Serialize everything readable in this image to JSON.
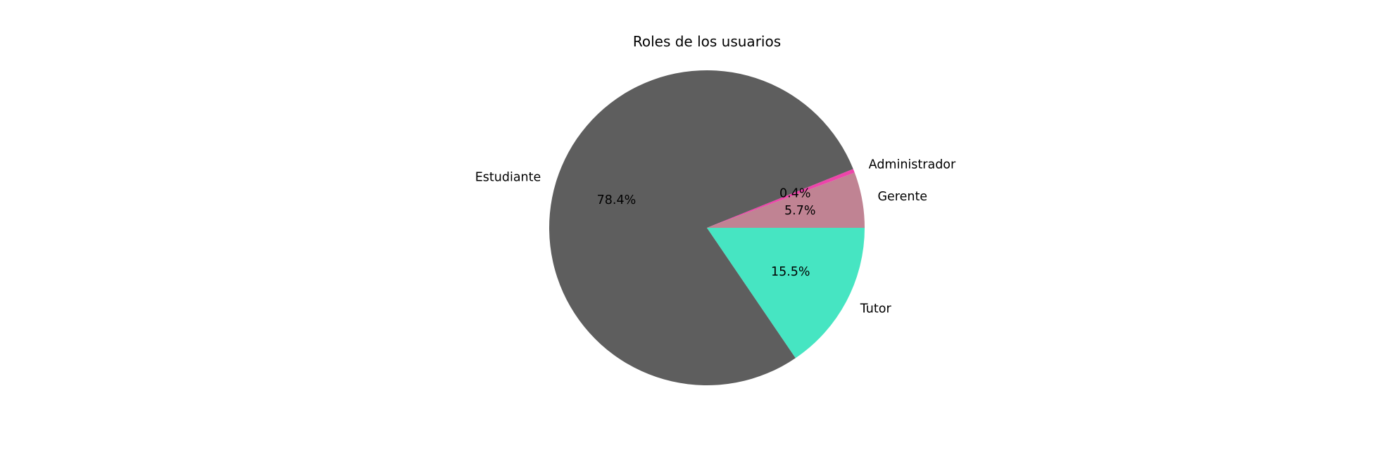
{
  "chart_data": {
    "type": "pie",
    "title": "Roles de los usuarios",
    "start_angle_deg": 0,
    "direction": "counterclockwise",
    "slices": [
      {
        "label": "Gerente",
        "value": 5.7,
        "pct_label": "5.7%",
        "color": "#c08393"
      },
      {
        "label": "Administrador",
        "value": 0.4,
        "pct_label": "0.4%",
        "color": "#ed45aa"
      },
      {
        "label": "Estudiante",
        "value": 78.4,
        "pct_label": "78.4%",
        "color": "#5e5e5e"
      },
      {
        "label": "Tutor",
        "value": 15.5,
        "pct_label": "15.5%",
        "color": "#46e5c2"
      }
    ],
    "legend": "none",
    "grid": false
  }
}
